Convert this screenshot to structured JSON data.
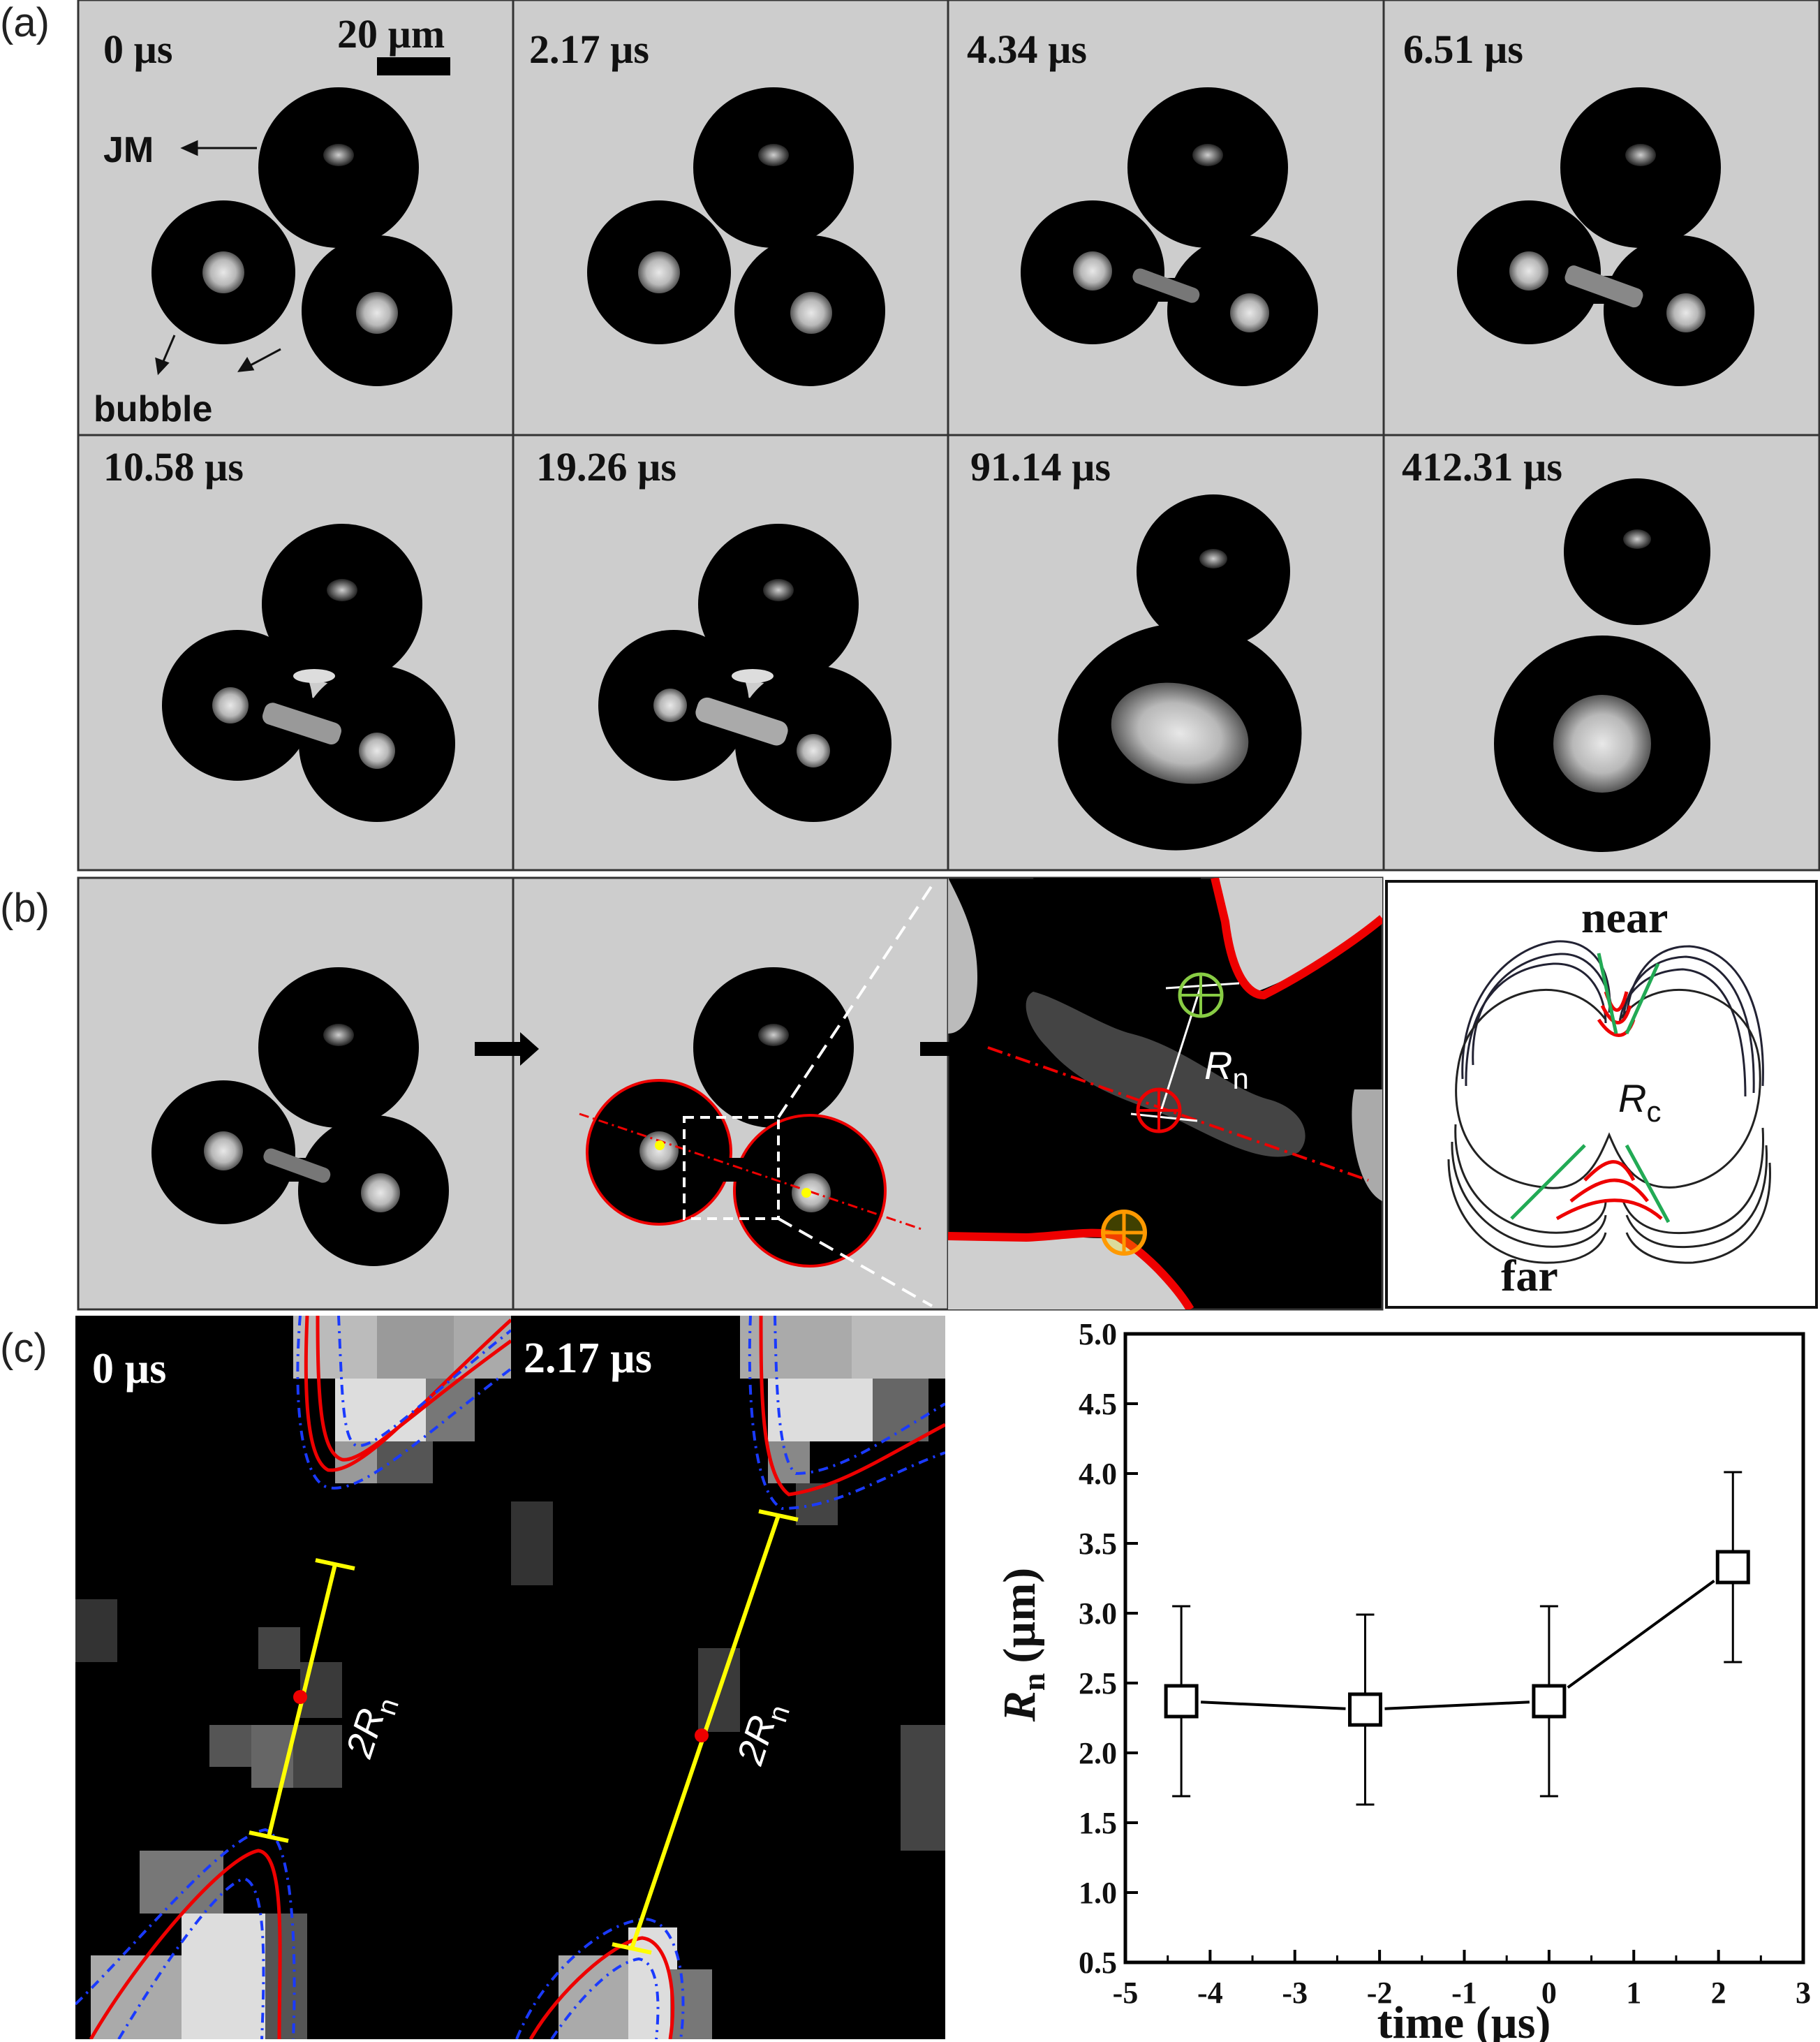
{
  "panel_labels": [
    "(a)",
    "(b)",
    "(c)"
  ],
  "panel_a": {
    "frames": [
      "0 µs",
      "2.17 µs",
      "4.34 µs",
      "6.51 µs",
      "10.58 µs",
      "19.26 µs",
      "91.14 µs",
      "412.31 µs"
    ],
    "scale_bar": "20 µm",
    "jm_label": "JM",
    "bubble_label": "bubble"
  },
  "panel_b": {
    "rn_symbol": "R",
    "rn_sub": "n",
    "rc_symbol": "R",
    "rc_sub": "c",
    "near_label": "near",
    "far_label": "far"
  },
  "panel_c": {
    "frames": [
      "0 µs",
      "2.17 µs"
    ],
    "diameter_label": "2R",
    "diameter_sub": "n"
  },
  "chart_data": {
    "type": "scatter",
    "xlabel": "time (µs)",
    "ylabel_symbol": "R",
    "ylabel_sub": "n",
    "ylabel_unit": "(µm)",
    "xlim": [
      -5,
      3
    ],
    "ylim": [
      0.5,
      5.0
    ],
    "x_ticks": [
      -5,
      -4,
      -3,
      -2,
      -1,
      0,
      1,
      2,
      3
    ],
    "y_ticks": [
      0.5,
      1.0,
      1.5,
      2.0,
      2.5,
      3.0,
      3.5,
      4.0,
      4.5,
      5.0
    ],
    "x": [
      -4.34,
      -2.17,
      0,
      2.17
    ],
    "y": [
      2.37,
      2.31,
      2.37,
      3.33
    ],
    "yerr": [
      0.68,
      0.68,
      0.68,
      0.68
    ],
    "marker": "open-square",
    "line": "solid",
    "grid": false
  }
}
